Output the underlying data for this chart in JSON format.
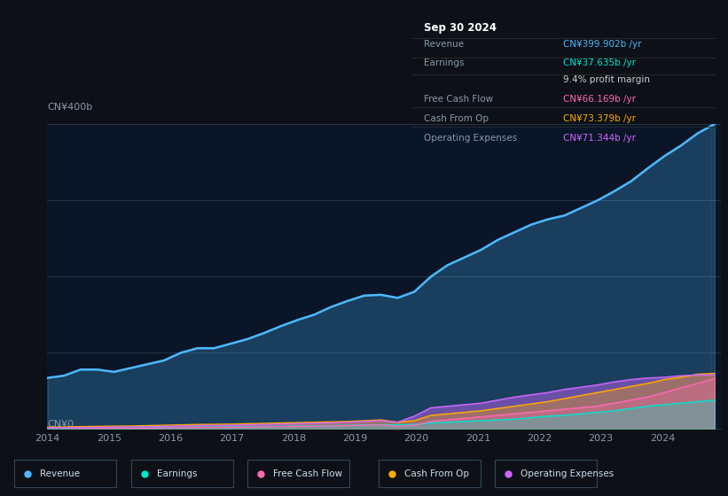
{
  "bg_color": "#0d1117",
  "plot_bg_color": "#0a1628",
  "title": "Sep 30 2024",
  "ylabel_top": "CN¥400b",
  "ylabel_bottom": "CN¥0",
  "x_ticks": [
    2014,
    2015,
    2016,
    2017,
    2018,
    2019,
    2020,
    2021,
    2022,
    2023,
    2024
  ],
  "tooltip": {
    "title": "Sep 30 2024",
    "rows": [
      {
        "label": "Revenue",
        "value": "CN¥399.902b /yr",
        "value_color": "#4db8ff"
      },
      {
        "label": "Earnings",
        "value": "CN¥37.635b /yr",
        "value_color": "#00e5cc"
      },
      {
        "label": "",
        "value": "9.4% profit margin",
        "value_color": "#cccccc"
      },
      {
        "label": "Free Cash Flow",
        "value": "CN¥66.169b /yr",
        "value_color": "#ff69b4"
      },
      {
        "label": "Cash From Op",
        "value": "CN¥73.379b /yr",
        "value_color": "#ffaa00"
      },
      {
        "label": "Operating Expenses",
        "value": "CN¥71.344b /yr",
        "value_color": "#cc66ff"
      }
    ]
  },
  "legend": [
    {
      "label": "Revenue",
      "color": "#4db8ff"
    },
    {
      "label": "Earnings",
      "color": "#00e5cc"
    },
    {
      "label": "Free Cash Flow",
      "color": "#ff69b4"
    },
    {
      "label": "Cash From Op",
      "color": "#ffaa00"
    },
    {
      "label": "Operating Expenses",
      "color": "#cc66ff"
    }
  ],
  "revenue": [
    67,
    70,
    78,
    78,
    75,
    80,
    85,
    90,
    100,
    106,
    106,
    112,
    118,
    126,
    135,
    143,
    150,
    160,
    168,
    175,
    176,
    172,
    180,
    200,
    215,
    225,
    235,
    248,
    258,
    268,
    275,
    280,
    290,
    300,
    312,
    325,
    342,
    358,
    372,
    388,
    400
  ],
  "earnings": [
    1,
    1.2,
    1.3,
    1.4,
    1.5,
    1.5,
    1.8,
    2.0,
    2.2,
    2.5,
    2.5,
    2.8,
    3.0,
    3.2,
    3.5,
    4.0,
    4.2,
    4.5,
    5.0,
    5.5,
    5.8,
    5.5,
    6.0,
    8.0,
    9.0,
    10,
    11,
    12,
    13,
    15,
    17,
    18,
    20,
    22,
    24,
    27,
    30,
    32,
    34,
    36,
    38
  ],
  "free_cash_flow": [
    0.5,
    0.5,
    0.8,
    0.8,
    1.0,
    1.0,
    1.2,
    1.5,
    1.8,
    2.0,
    2.0,
    2.2,
    2.5,
    2.8,
    3.0,
    3.5,
    3.8,
    4.0,
    4.5,
    5.0,
    5.5,
    3.5,
    5.0,
    10,
    12,
    14,
    16,
    18,
    20,
    22,
    24,
    26,
    28,
    30,
    34,
    38,
    42,
    48,
    54,
    60,
    66
  ],
  "cash_from_op": [
    2.5,
    2.8,
    3.2,
    3.5,
    3.8,
    4.0,
    4.5,
    5.0,
    5.5,
    6.0,
    6.2,
    6.5,
    7.0,
    7.5,
    8.0,
    8.5,
    9.0,
    9.5,
    10,
    11,
    12,
    9,
    11,
    18,
    20,
    22,
    24,
    27,
    30,
    33,
    36,
    40,
    44,
    48,
    52,
    56,
    60,
    65,
    68,
    72,
    73
  ],
  "operating_expenses": [
    1.5,
    1.8,
    2.0,
    2.2,
    2.5,
    2.8,
    3.0,
    3.5,
    4.0,
    4.5,
    4.8,
    5.0,
    5.5,
    6.0,
    6.5,
    7.0,
    7.5,
    8.0,
    9.0,
    10,
    11,
    9,
    17,
    28,
    30,
    32,
    34,
    38,
    42,
    45,
    48,
    52,
    55,
    58,
    62,
    65,
    67,
    68,
    70,
    71,
    71
  ],
  "line_colors": {
    "revenue": "#4db8ff",
    "earnings": "#00e5cc",
    "free_cash_flow": "#ff69b4",
    "cash_from_op": "#ffaa00",
    "operating_expenses": "#cc66ff"
  },
  "ylim_max": 400,
  "grid_lines": [
    100,
    200,
    300,
    400
  ]
}
